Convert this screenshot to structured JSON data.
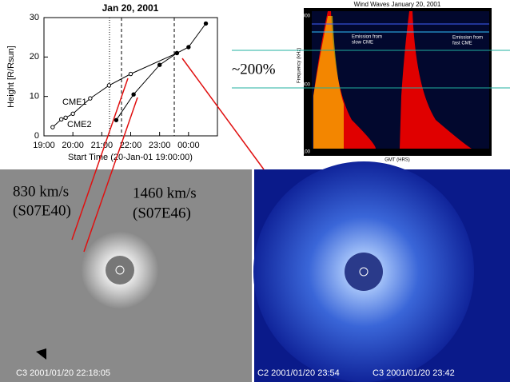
{
  "chart_data": {
    "type": "line",
    "title": "Jan 20, 2001",
    "x_label": "Start Time (20-Jan-01 19:00:00)",
    "y_label": "Height [R/Rsun]",
    "xlim": [
      19,
      25
    ],
    "ylim": [
      0,
      30
    ],
    "xticks": [
      {
        "value": 19,
        "label": "19:00"
      },
      {
        "value": 20,
        "label": "20:00"
      },
      {
        "value": 21,
        "label": "21:00"
      },
      {
        "value": 22,
        "label": "22:00"
      },
      {
        "value": 23,
        "label": "23:00"
      },
      {
        "value": 24,
        "label": "00:00"
      }
    ],
    "yticks": [
      0,
      10,
      20,
      30
    ],
    "series": [
      {
        "name": "CME1",
        "color": "#000000",
        "x": [
          19.3,
          19.6,
          19.75,
          20.0,
          20.6,
          21.25,
          22.0,
          23.6
        ],
        "values": [
          2.2,
          4.2,
          4.6,
          5.6,
          9.5,
          12.8,
          15.7,
          21
        ]
      },
      {
        "name": "CME2",
        "color": "#000000",
        "x": [
          21.5,
          22.1,
          23.0,
          23.6,
          24.0,
          24.6
        ],
        "values": [
          4,
          10.5,
          18,
          21,
          22.5,
          28.5
        ]
      }
    ]
  },
  "spectrogram": {
    "title": "Wind Waves January 20, 2001",
    "y_label": "Frequency (kHz)",
    "x_label": "GMT (HRS)",
    "yticks": [
      "10000",
      "1000",
      "100"
    ],
    "xticks": [
      "18",
      "19",
      "20",
      "21",
      "22",
      "23",
      "0"
    ],
    "slow_note": [
      "Emission from",
      "slow CME"
    ],
    "fast_note": [
      "Emission from",
      "fast CME"
    ]
  },
  "annotation": "~200%",
  "left_image": {
    "speed1": "830 km/s",
    "loc1": "(S07E40)",
    "speed2": "1460 km/s",
    "loc2": "(S07E46)",
    "caption": "C3 2001/01/20 22:18:05"
  },
  "right_image": {
    "caption1": "C2 2001/01/20 23:54",
    "caption2": "C3 2001/01/20 23:42"
  }
}
